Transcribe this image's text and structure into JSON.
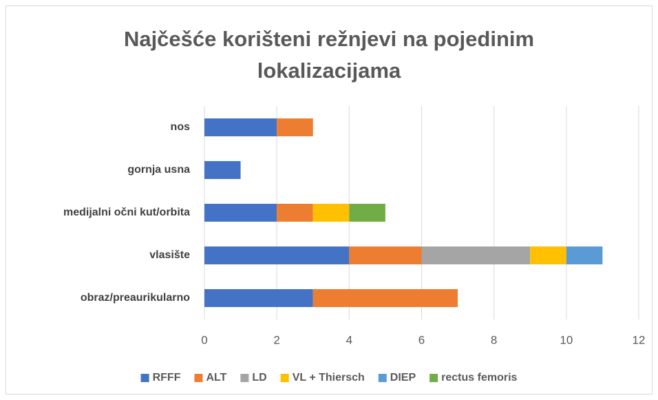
{
  "chart_data": {
    "type": "stacked_barh",
    "title": "Najčešće korišteni režnjevi na pojedinim lokalizacijama",
    "categories": [
      "nos",
      "gornja usna",
      "medijalni očni kut/orbita",
      "vlasište",
      "obraz/preaurikularno"
    ],
    "series": [
      {
        "name": "RFFF",
        "color": "#4472c4",
        "values": [
          2,
          1,
          2,
          4,
          3
        ]
      },
      {
        "name": "ALT",
        "color": "#ed7d31",
        "values": [
          1,
          0,
          1,
          2,
          4
        ]
      },
      {
        "name": "LD",
        "color": "#a5a5a5",
        "values": [
          0,
          0,
          0,
          3,
          0
        ]
      },
      {
        "name": "VL + Thiersch",
        "color": "#ffc000",
        "values": [
          0,
          0,
          1,
          1,
          0
        ]
      },
      {
        "name": "DIEP",
        "color": "#5b9bd5",
        "values": [
          0,
          0,
          0,
          1,
          0
        ]
      },
      {
        "name": "rectus femoris",
        "color": "#70ad47",
        "values": [
          0,
          0,
          1,
          0,
          0
        ]
      }
    ],
    "xlim": [
      0,
      12
    ],
    "xticks": [
      0,
      2,
      4,
      6,
      8,
      10,
      12
    ],
    "grid": true,
    "legend": "bottom"
  }
}
